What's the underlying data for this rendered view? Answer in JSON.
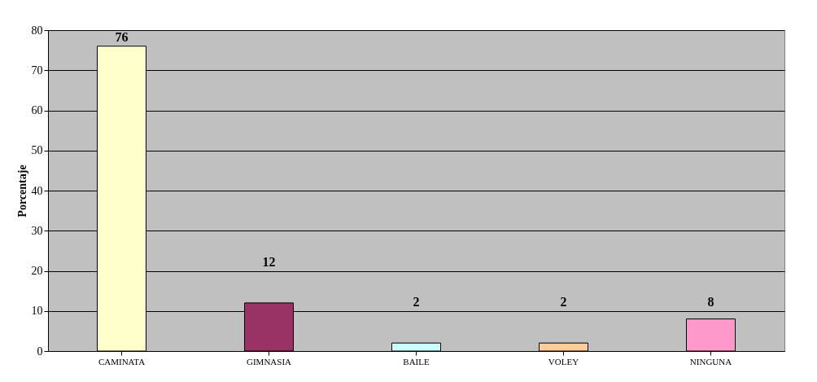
{
  "chart_data": {
    "type": "bar",
    "ylabel": "Porcentaje",
    "categories": [
      "CAMINATA",
      "GIMNASIA",
      "BAILE",
      "VOLEY",
      "NINGUNA"
    ],
    "values": [
      76,
      12,
      2,
      2,
      8
    ],
    "colors": [
      "#ffffcc",
      "#993366",
      "#ccffff",
      "#ffcc99",
      "#ff99cc"
    ],
    "ylim": [
      0,
      80
    ],
    "yticks": [
      0,
      10,
      20,
      30,
      40,
      50,
      60,
      70,
      80
    ],
    "grid": "y",
    "data_labels": true
  }
}
